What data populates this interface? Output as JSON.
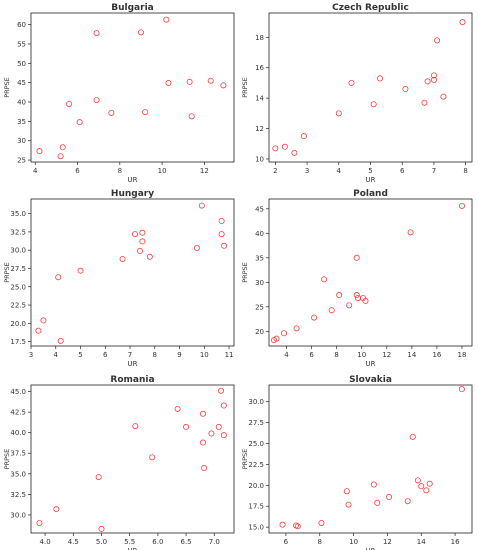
{
  "marker_color": "#ff3b3b",
  "chart_data": [
    {
      "type": "scatter",
      "title": "Bulgaria",
      "xlabel": "UR",
      "ylabel": "PRPSE",
      "xlim": [
        3.8,
        13.4
      ],
      "ylim": [
        24.5,
        63
      ],
      "xticks": [
        4,
        6,
        8,
        10,
        12
      ],
      "yticks": [
        25,
        30,
        35,
        40,
        45,
        50,
        55,
        60
      ],
      "grid": false,
      "points": [
        [
          4.2,
          27.3
        ],
        [
          5.2,
          26.0
        ],
        [
          5.3,
          28.3
        ],
        [
          5.6,
          39.5
        ],
        [
          6.1,
          34.8
        ],
        [
          6.9,
          57.8
        ],
        [
          6.9,
          40.5
        ],
        [
          7.6,
          37.2
        ],
        [
          9.0,
          58.0
        ],
        [
          9.2,
          37.4
        ],
        [
          10.2,
          61.3
        ],
        [
          10.3,
          44.9
        ],
        [
          11.3,
          45.2
        ],
        [
          11.4,
          36.3
        ],
        [
          12.3,
          45.5
        ],
        [
          12.9,
          44.3
        ]
      ]
    },
    {
      "type": "scatter",
      "title": "Czech Republic",
      "xlabel": "UR",
      "ylabel": "PRPSE",
      "xlim": [
        1.8,
        8.2
      ],
      "ylim": [
        9.8,
        19.6
      ],
      "xticks": [
        2,
        3,
        4,
        5,
        6,
        7,
        8
      ],
      "yticks": [
        10,
        12,
        14,
        16,
        18
      ],
      "grid": false,
      "points": [
        [
          2.0,
          10.7
        ],
        [
          2.3,
          10.8
        ],
        [
          2.6,
          10.4
        ],
        [
          2.9,
          11.5
        ],
        [
          4.0,
          13.0
        ],
        [
          4.4,
          15.0
        ],
        [
          5.1,
          13.6
        ],
        [
          5.3,
          15.3
        ],
        [
          6.1,
          14.6
        ],
        [
          6.7,
          13.7
        ],
        [
          6.8,
          15.1
        ],
        [
          7.0,
          15.5
        ],
        [
          7.0,
          15.2
        ],
        [
          7.1,
          17.8
        ],
        [
          7.3,
          14.1
        ],
        [
          7.9,
          19.0
        ]
      ]
    },
    {
      "type": "scatter",
      "title": "Hungary",
      "xlabel": "UR",
      "ylabel": "PRPSE",
      "xlim": [
        3.0,
        11.2
      ],
      "ylim": [
        16.9,
        37.0
      ],
      "xticks": [
        3,
        4,
        5,
        6,
        7,
        8,
        9,
        10,
        11
      ],
      "yticks": [
        17.5,
        20.0,
        22.5,
        25.0,
        27.5,
        30.0,
        32.5,
        35.0
      ],
      "grid": false,
      "points": [
        [
          3.3,
          19.0
        ],
        [
          3.5,
          20.4
        ],
        [
          4.1,
          26.3
        ],
        [
          4.2,
          17.6
        ],
        [
          5.0,
          27.2
        ],
        [
          6.7,
          28.8
        ],
        [
          7.2,
          32.2
        ],
        [
          7.4,
          29.9
        ],
        [
          7.5,
          31.2
        ],
        [
          7.5,
          32.4
        ],
        [
          7.8,
          29.1
        ],
        [
          9.7,
          30.3
        ],
        [
          9.9,
          36.1
        ],
        [
          10.7,
          34.0
        ],
        [
          10.7,
          32.2
        ],
        [
          10.8,
          30.6
        ]
      ]
    },
    {
      "type": "scatter",
      "title": "Poland",
      "xlabel": "UR",
      "ylabel": "PRPSE",
      "xlim": [
        2.6,
        18.8
      ],
      "ylim": [
        17.0,
        47.0
      ],
      "xticks": [
        4,
        6,
        8,
        10,
        12,
        14,
        16,
        18
      ],
      "yticks": [
        20,
        25,
        30,
        35,
        40,
        45
      ],
      "grid": false,
      "points": [
        [
          3.0,
          18.2
        ],
        [
          3.2,
          18.5
        ],
        [
          3.8,
          19.6
        ],
        [
          4.8,
          20.6
        ],
        [
          6.2,
          22.8
        ],
        [
          7.0,
          30.6
        ],
        [
          7.6,
          24.3
        ],
        [
          8.2,
          27.4
        ],
        [
          9.0,
          25.3
        ],
        [
          9.6,
          35.0
        ],
        [
          9.6,
          27.4
        ],
        [
          9.7,
          26.8
        ],
        [
          10.1,
          26.8
        ],
        [
          10.3,
          26.2
        ],
        [
          13.9,
          40.2
        ],
        [
          18.0,
          45.6
        ]
      ]
    },
    {
      "type": "scatter",
      "title": "Romania",
      "xlabel": "UR",
      "ylabel": "PRPSE",
      "xlim": [
        3.75,
        7.35
      ],
      "ylim": [
        27.8,
        45.8
      ],
      "xticks": [
        4.0,
        4.5,
        5.0,
        5.5,
        6.0,
        6.5,
        7.0
      ],
      "yticks": [
        30.0,
        32.5,
        35.0,
        37.5,
        40.0,
        42.5,
        45.0
      ],
      "grid": false,
      "points": [
        [
          3.9,
          29.0
        ],
        [
          4.2,
          30.7
        ],
        [
          4.95,
          34.6
        ],
        [
          5.0,
          28.3
        ],
        [
          5.6,
          40.8
        ],
        [
          5.9,
          37.0
        ],
        [
          6.35,
          42.9
        ],
        [
          6.5,
          40.7
        ],
        [
          6.8,
          42.3
        ],
        [
          6.8,
          38.8
        ],
        [
          6.82,
          35.7
        ],
        [
          6.95,
          39.9
        ],
        [
          7.08,
          40.7
        ],
        [
          7.12,
          45.1
        ],
        [
          7.17,
          43.3
        ],
        [
          7.17,
          39.7
        ]
      ]
    },
    {
      "type": "scatter",
      "title": "Slovakia",
      "xlabel": "UR",
      "ylabel": "PRPSE",
      "xlim": [
        5.0,
        17.0
      ],
      "ylim": [
        14.3,
        32.0
      ],
      "xticks": [
        6,
        8,
        10,
        12,
        14,
        16
      ],
      "yticks": [
        15.0,
        17.5,
        20.0,
        22.5,
        25.0,
        27.5,
        30.0
      ],
      "grid": false,
      "points": [
        [
          5.8,
          15.3
        ],
        [
          6.6,
          15.2
        ],
        [
          6.7,
          15.1
        ],
        [
          8.1,
          15.5
        ],
        [
          9.6,
          19.3
        ],
        [
          9.7,
          17.7
        ],
        [
          11.2,
          20.1
        ],
        [
          11.4,
          17.9
        ],
        [
          12.1,
          18.6
        ],
        [
          13.2,
          18.1
        ],
        [
          13.5,
          25.8
        ],
        [
          13.8,
          20.6
        ],
        [
          14.0,
          19.9
        ],
        [
          14.3,
          19.4
        ],
        [
          14.5,
          20.2
        ],
        [
          16.4,
          31.5
        ]
      ]
    }
  ]
}
